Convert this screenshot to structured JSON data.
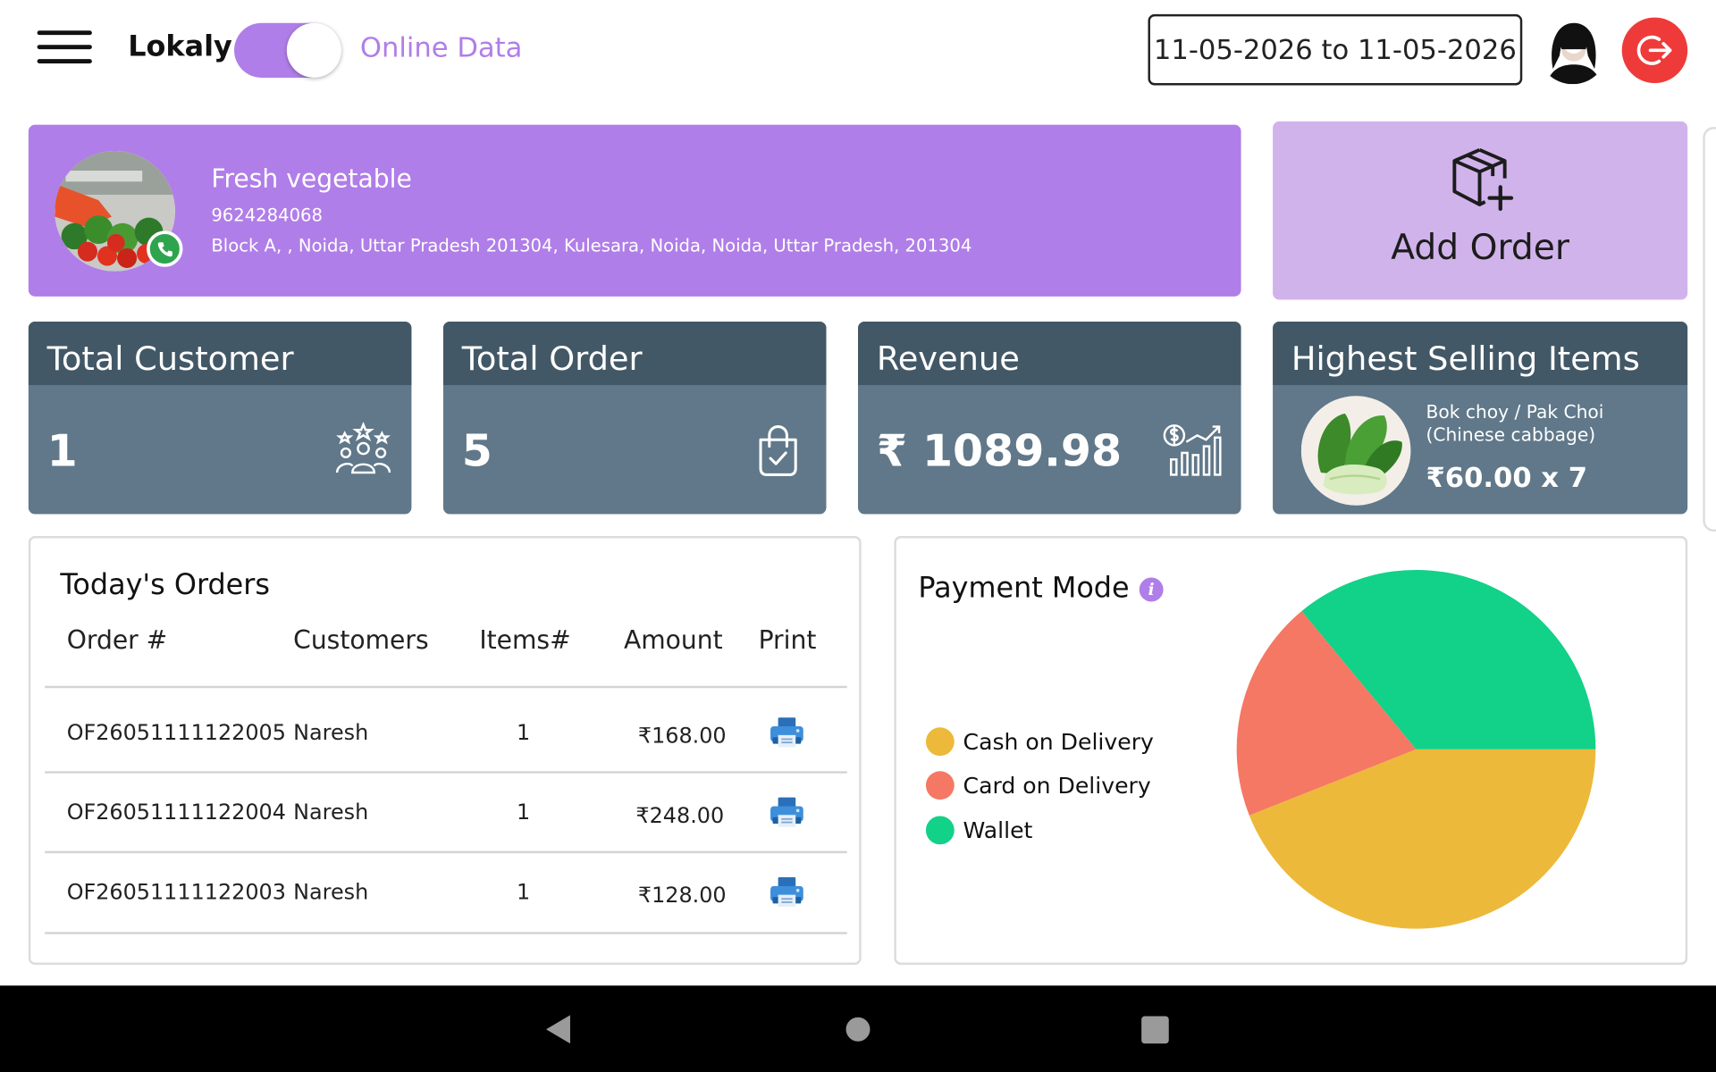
{
  "header": {
    "brand": "Lokaly",
    "online_toggle_on": true,
    "mode_label": "Online Data",
    "date_range": "11-05-2026 to 11-05-2026",
    "menu_icon": "hamburger-menu-icon",
    "logout_icon": "logout-icon",
    "colors": {
      "accent": "#b07ee8",
      "logout": "#ef3a3a"
    }
  },
  "store": {
    "name": "Fresh vegetable",
    "phone": "9624284068",
    "address": "Block A, , Noida, Uttar Pradesh 201304, Kulesara, Noida, Noida, Uttar Pradesh, 201304",
    "badge_icon": "phone-icon"
  },
  "add_order": {
    "label": "Add Order",
    "icon": "box-plus-icon"
  },
  "stats": {
    "total_customer": {
      "title": "Total Customer",
      "value": "1",
      "icon": "customers-group-icon"
    },
    "total_order": {
      "title": "Total Order",
      "value": "5",
      "icon": "shopping-bag-check-icon"
    },
    "revenue": {
      "title": "Revenue",
      "value": "₹ 1089.98",
      "icon": "revenue-chart-icon"
    },
    "highest_selling": {
      "title": "Highest Selling Items",
      "item_name": "Bok choy / Pak Choi (Chinese cabbage)",
      "price_qty": "₹60.00 x 7"
    }
  },
  "orders": {
    "title": "Today's Orders",
    "columns": [
      "Order #",
      "Customers",
      "Items#",
      "Amount",
      "Print"
    ],
    "rows": [
      {
        "order_no": "OF26051111122005",
        "customer": "Naresh",
        "items": "1",
        "amount": "₹168.00"
      },
      {
        "order_no": "OF26051111122004",
        "customer": "Naresh",
        "items": "1",
        "amount": "₹248.00"
      },
      {
        "order_no": "OF26051111122003",
        "customer": "Naresh",
        "items": "1",
        "amount": "₹128.00"
      }
    ],
    "print_icon": "printer-icon"
  },
  "payment": {
    "title": "Payment Mode",
    "info_icon": "info-icon",
    "legend": [
      {
        "label": "Cash on Delivery",
        "color": "#edb93a"
      },
      {
        "label": "Card on Delivery",
        "color": "#f47864"
      },
      {
        "label": "Wallet",
        "color": "#12d188"
      }
    ]
  },
  "chart_data": {
    "type": "pie",
    "categories": [
      "Cash on Delivery",
      "Card on Delivery",
      "Wallet"
    ],
    "values": [
      0.44,
      0.2,
      0.36
    ],
    "colors": [
      "#edb93a",
      "#f47864",
      "#12d188"
    ],
    "legend_position": "left"
  },
  "system_nav": {
    "back_icon": "back-triangle-icon",
    "home_icon": "home-circle-icon",
    "recents_icon": "recents-square-icon"
  }
}
